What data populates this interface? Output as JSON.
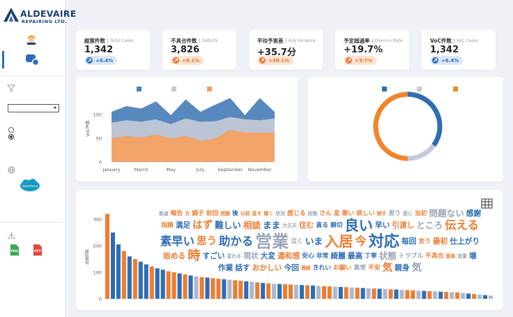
{
  "sidebar": {
    "logo_name": "ALDEVAIRE",
    "logo_sub": "REPAIRING LTD.",
    "salesforce": "salesforce",
    "exports": [
      "PNG",
      "PPT"
    ]
  },
  "kpis": [
    {
      "title": "総案件数",
      "subtitle": "Total Cases",
      "value": "1,342",
      "change": "+6.4%",
      "badge_color": "#2e6db4",
      "badge_bg": "#dbe7f5"
    },
    {
      "title": "不具合件数",
      "subtitle": "Defects",
      "value": "3,826",
      "change": "+8.1%",
      "badge_color": "#e8702a",
      "badge_bg": "#fde3d0"
    },
    {
      "title": "平均予実差",
      "subtitle": "Avg Variance",
      "value": "+35.7分",
      "change": "+36.1%",
      "badge_color": "#e8702a",
      "badge_bg": "#fde3d0"
    },
    {
      "title": "予定超過率",
      "subtitle": "Overrun Rate",
      "value": "+19.7%",
      "change": "+3.7%",
      "badge_color": "#e8702a",
      "badge_bg": "#fde3d0"
    },
    {
      "title": "VoC件数",
      "subtitle": "VoC Cases",
      "value": "1,342",
      "change": "+6.4%",
      "badge_color": "#2e6db4",
      "badge_bg": "#dbe7f5"
    }
  ],
  "chart_data": [
    {
      "type": "area",
      "ylabel": "VoC件数",
      "categories": [
        "January",
        null,
        "March",
        null,
        "May",
        null,
        "July",
        null,
        "September",
        null,
        "November",
        null
      ],
      "series": [
        {
          "color": "#4a7fb8",
          "values": [
            106,
            118,
            113,
            128,
            99,
            132,
            106,
            121,
            135,
            99,
            135,
            106
          ]
        },
        {
          "color": "#c3cad8",
          "values": [
            83,
            88,
            85,
            90,
            80,
            92,
            85,
            86,
            95,
            90,
            88,
            92
          ]
        },
        {
          "color": "#f5a05f",
          "values": [
            50,
            55,
            52,
            58,
            50,
            55,
            45,
            50,
            68,
            62,
            62,
            62
          ]
        }
      ],
      "ylim": [
        0,
        140
      ],
      "yticks": [
        0,
        50,
        100
      ],
      "grid": false
    },
    {
      "type": "pie",
      "donut": true,
      "values": [
        35,
        15,
        50
      ],
      "colors": [
        "#2e6db4",
        "#c3cad8",
        "#f0852d"
      ]
    },
    {
      "type": "bar",
      "ylabel": "出現回数",
      "values": [
        320,
        250,
        205,
        180,
        160,
        150,
        140,
        130,
        122,
        115,
        110,
        104,
        100,
        96,
        92,
        88,
        85,
        82,
        80,
        78,
        76,
        74,
        72,
        70,
        68,
        66,
        64,
        62,
        60,
        58,
        57,
        56,
        55,
        54,
        53,
        52,
        51,
        50,
        49,
        48,
        47,
        46,
        45,
        44,
        43,
        42,
        41,
        40,
        39,
        38,
        37,
        36,
        35,
        34,
        33,
        32,
        31,
        30,
        29,
        28,
        27,
        26,
        25,
        24,
        22,
        20,
        18,
        16,
        14,
        12
      ],
      "colors": [
        "#ed7d31",
        "#2e6db4",
        "#2e6db4",
        "#ed7d31",
        "#2e6db4",
        "#ed7d31",
        "#2e6db4",
        "#2e6db4",
        "#ed7d31",
        "#2e6db4",
        "#2e6db4",
        "#ed7d31",
        "#ed7d31",
        "#2e6db4",
        "#ed7d31",
        "#2e6db4",
        "#aeb8cc",
        "#ed7d31",
        "#2e6db4",
        "#ed7d31",
        "#ed7d31",
        "#2e6db4",
        "#aeb8cc",
        "#ed7d31",
        "#ed7d31",
        "#2e6db4",
        "#aeb8cc",
        "#ed7d31",
        "#2e6db4",
        "#ed7d31",
        "#aeb8cc",
        "#2e6db4",
        "#ed7d31",
        "#ed7d31",
        "#aeb8cc",
        "#2e6db4",
        "#ed7d31",
        "#2e6db4",
        "#aeb8cc",
        "#ed7d31",
        "#ed7d31",
        "#aeb8cc",
        "#2e6db4",
        "#ed7d31",
        "#aeb8cc",
        "#ed7d31",
        "#2e6db4",
        "#aeb8cc",
        "#ed7d31",
        "#2e6db4",
        "#aeb8cc",
        "#ed7d31",
        "#2e6db4",
        "#aeb8cc",
        "#ed7d31",
        "#ed7d31",
        "#aeb8cc",
        "#2e6db4",
        "#ed7d31",
        "#aeb8cc",
        "#2e6db4",
        "#ed7d31",
        "#aeb8cc",
        "#ed7d31",
        "#aeb8cc",
        "#2e6db4",
        "#ed7d31",
        "#aeb8cc",
        "#2e6db4",
        "#aeb8cc"
      ],
      "ylim": [
        0,
        330
      ],
      "yticks": [
        0,
        100,
        200,
        300
      ]
    },
    {
      "type": "wordcloud",
      "words": [
        {
          "text": "普通",
          "count": 1,
          "color": "#9aa5b8"
        },
        {
          "text": "報告",
          "count": 2,
          "color": "#ed7d31"
        },
        {
          "text": "方",
          "count": 1,
          "color": "#ed7d31"
        },
        {
          "text": "調子",
          "count": 2,
          "color": "#ed7d31"
        },
        {
          "text": "前回",
          "count": 2,
          "color": "#ed7d31"
        },
        {
          "text": "問題",
          "count": 1,
          "color": "#ed7d31"
        },
        {
          "text": "後",
          "count": 2,
          "color": "#2e6db4"
        },
        {
          "text": "以前",
          "count": 1,
          "color": "#ed7d31"
        },
        {
          "text": "直す",
          "count": 1,
          "color": "#ed7d31"
        },
        {
          "text": "聞く",
          "count": 1,
          "color": "#ed7d31"
        },
        {
          "text": "状況",
          "count": 1,
          "color": "#9aa5b8"
        },
        {
          "text": "感じる",
          "count": 2,
          "color": "#ed7d31"
        },
        {
          "text": "段階",
          "count": 1,
          "color": "#9aa5b8"
        },
        {
          "text": "さん",
          "count": 2,
          "color": "#ed7d31"
        },
        {
          "text": "変",
          "count": 2,
          "color": "#ed7d31"
        },
        {
          "text": "悪い",
          "count": 2,
          "color": "#ed7d31"
        },
        {
          "text": "欲しい",
          "count": 2,
          "color": "#ed7d31"
        },
        {
          "text": "越す",
          "count": 1,
          "color": "#ed7d31"
        },
        {
          "text": "思う",
          "count": 2,
          "color": "#9aa5b8"
        },
        {
          "text": "感じ",
          "count": 1,
          "color": "#9aa5b8"
        },
        {
          "text": "当初",
          "count": 2,
          "color": "#ed7d31"
        },
        {
          "text": "問題ない",
          "count": 4,
          "color": "#9aa5b8"
        },
        {
          "text": "感謝",
          "count": 3,
          "color": "#2e6db4"
        },
        {
          "text": "指摘",
          "count": 2,
          "color": "#ed7d31"
        },
        {
          "text": "満足",
          "count": 3,
          "color": "#2e6db4"
        },
        {
          "text": "はず",
          "count": 5,
          "color": "#ed7d31"
        },
        {
          "text": "難しい",
          "count": 4,
          "color": "#2e6db4"
        },
        {
          "text": "相談",
          "count": 4,
          "color": "#ed7d31"
        },
        {
          "text": "まま",
          "count": 4,
          "color": "#2e6db4"
        },
        {
          "text": "大丈夫",
          "count": 1,
          "color": "#9aa5b8"
        },
        {
          "text": "住む",
          "count": 3,
          "color": "#ed7d31"
        },
        {
          "text": "直る",
          "count": 2,
          "color": "#2e6db4"
        },
        {
          "text": "親切",
          "count": 2,
          "color": "#2e6db4"
        },
        {
          "text": "良い",
          "count": 8,
          "color": "#2e6db4"
        },
        {
          "text": "早い",
          "count": 3,
          "color": "#2e6db4"
        },
        {
          "text": "引渡し",
          "count": 3,
          "color": "#ed7d31"
        },
        {
          "text": "ところ",
          "count": 4,
          "color": "#9aa5b8"
        },
        {
          "text": "伝える",
          "count": 6,
          "color": "#ed7d31"
        },
        {
          "text": "素早い",
          "count": 6,
          "color": "#2e6db4"
        },
        {
          "text": "思う",
          "count": 5,
          "color": "#ed7d31"
        },
        {
          "text": "助かる",
          "count": 6,
          "color": "#2e6db4"
        },
        {
          "text": "営業",
          "count": 10,
          "color": "#9aa5b8"
        },
        {
          "text": "泣く",
          "count": 2,
          "color": "#9aa5b8"
        },
        {
          "text": "いま",
          "count": 4,
          "color": "#2e6db4"
        },
        {
          "text": "入居",
          "count": 8,
          "color": "#ed7d31"
        },
        {
          "text": "今",
          "count": 6,
          "color": "#ed7d31"
        },
        {
          "text": "対応",
          "count": 9,
          "color": "#2e6db4"
        },
        {
          "text": "毎回",
          "count": 3,
          "color": "#2e6db4"
        },
        {
          "text": "言う",
          "count": 2,
          "color": "#ed7d31"
        },
        {
          "text": "最初",
          "count": 3,
          "color": "#ed7d31"
        },
        {
          "text": "仕上がり",
          "count": 3,
          "color": "#2e6db4"
        },
        {
          "text": "始める",
          "count": 3,
          "color": "#ed7d31"
        },
        {
          "text": "時",
          "count": 7,
          "color": "#ed7d31"
        },
        {
          "text": "すごい",
          "count": 3,
          "color": "#2e6db4"
        },
        {
          "text": "変わる",
          "count": 1,
          "color": "#9aa5b8"
        },
        {
          "text": "現状",
          "count": 3,
          "color": "#9aa5b8"
        },
        {
          "text": "大変",
          "count": 3,
          "color": "#2e6db4"
        },
        {
          "text": "違和感",
          "count": 3,
          "color": "#ed7d31"
        },
        {
          "text": "安心",
          "count": 2,
          "color": "#2e6db4"
        },
        {
          "text": "非常",
          "count": 2,
          "color": "#2e6db4"
        },
        {
          "text": "綺麗",
          "count": 3,
          "color": "#2e6db4"
        },
        {
          "text": "最高",
          "count": 3,
          "color": "#2e6db4"
        },
        {
          "text": "丁寧",
          "count": 2,
          "color": "#2e6db4"
        },
        {
          "text": "状態",
          "count": 4,
          "color": "#9aa5b8"
        },
        {
          "text": "トラブル",
          "count": 2,
          "color": "#9aa5b8"
        },
        {
          "text": "不具合",
          "count": 2,
          "color": "#ed7d31"
        },
        {
          "text": "直後",
          "count": 1,
          "color": "#ed7d31"
        },
        {
          "text": "放置",
          "count": 1,
          "color": "#9aa5b8"
        },
        {
          "text": "壊",
          "count": 3,
          "color": "#2e6db4"
        },
        {
          "text": "作業",
          "count": 3,
          "color": "#2e6db4"
        },
        {
          "text": "話す",
          "count": 3,
          "color": "#2e6db4"
        },
        {
          "text": "おかしい",
          "count": 3,
          "color": "#ed7d31"
        },
        {
          "text": "今回",
          "count": 3,
          "color": "#2e6db4"
        },
        {
          "text": "連絡",
          "count": 1,
          "color": "#ed7d31"
        },
        {
          "text": "きれい",
          "count": 2,
          "color": "#2e6db4"
        },
        {
          "text": "お願い",
          "count": 2,
          "color": "#ed7d31"
        },
        {
          "text": "異常",
          "count": 2,
          "color": "#9aa5b8"
        },
        {
          "text": "不安",
          "count": 2,
          "color": "#ed7d31"
        },
        {
          "text": "気",
          "count": 5,
          "color": "#ed7d31"
        },
        {
          "text": "親身",
          "count": 3,
          "color": "#2e6db4"
        },
        {
          "text": "気",
          "count": 5,
          "color": "#9aa5b8"
        }
      ]
    }
  ]
}
